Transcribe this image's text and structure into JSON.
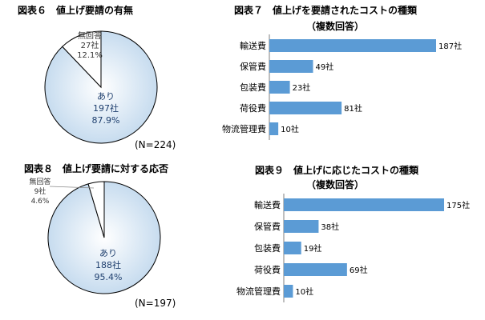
{
  "chart_data": [
    {
      "type": "pie",
      "title": "図表６　値上げ要請の有無",
      "note": "(N=224)",
      "slices": [
        {
          "label": "あり",
          "count": "197社",
          "percent": "87.9%",
          "value": 87.9,
          "color": "#c7dcef"
        },
        {
          "label": "無回答",
          "count": "27社",
          "percent": "12.1%",
          "value": 12.1,
          "color": "#ffffff"
        }
      ]
    },
    {
      "type": "bar",
      "orientation": "horizontal",
      "title": "図表７　値上げを要請されたコストの種類",
      "subtitle": "（複数回答）",
      "categories": [
        "輸送費",
        "保管費",
        "包装費",
        "荷役費",
        "物流管理費"
      ],
      "values": [
        187,
        49,
        23,
        81,
        10
      ],
      "value_labels": [
        "187社",
        "49社",
        "23社",
        "81社",
        "10社"
      ],
      "color": "#5b9bd5"
    },
    {
      "type": "pie",
      "title": "図表８　値上げ要請に対する応否",
      "note": "(N=197)",
      "slices": [
        {
          "label": "あり",
          "count": "188社",
          "percent": "95.4%",
          "value": 95.4,
          "color": "#c7dcef"
        },
        {
          "label": "無回答",
          "count": "9社",
          "percent": "4.6%",
          "value": 4.6,
          "color": "#ffffff"
        }
      ]
    },
    {
      "type": "bar",
      "orientation": "horizontal",
      "title": "図表９　値上げに応じたコストの種類",
      "subtitle": "（複数回答）",
      "categories": [
        "輸送費",
        "保管費",
        "包装費",
        "荷役費",
        "物流管理費"
      ],
      "values": [
        175,
        38,
        19,
        69,
        10
      ],
      "value_labels": [
        "175社",
        "38社",
        "19社",
        "69社",
        "10社"
      ],
      "color": "#5b9bd5"
    }
  ]
}
